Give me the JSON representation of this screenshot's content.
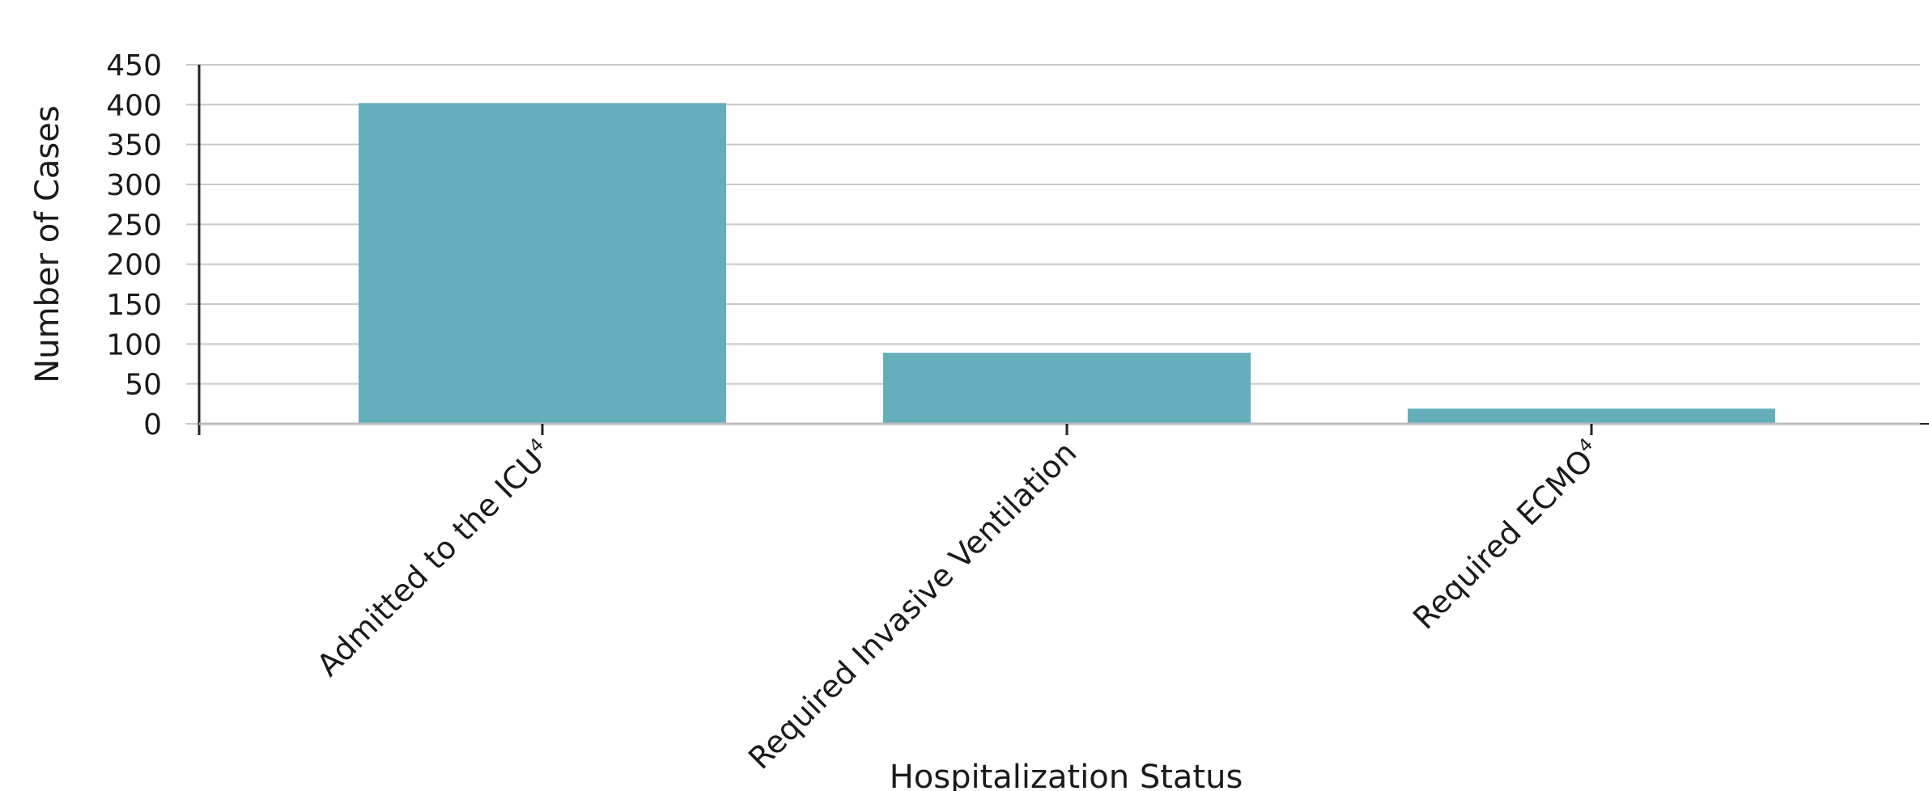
{
  "chart_data": {
    "type": "bar",
    "categories": [
      "Admitted to the ICU",
      "Required Invasive Ventilation",
      "Required ECMO"
    ],
    "category_superscripts": [
      "4",
      "",
      "4"
    ],
    "values": [
      402,
      89,
      19
    ],
    "xlabel": "Hospitalization Status",
    "ylabel": "Number of Cases",
    "ylim": [
      0,
      450
    ],
    "yticks": [
      0,
      50,
      100,
      150,
      200,
      250,
      300,
      350,
      400,
      450
    ],
    "grid": true,
    "bar_color": "#64afbb",
    "grid_color": "#c8c8c8",
    "axis_color": "#222222"
  }
}
